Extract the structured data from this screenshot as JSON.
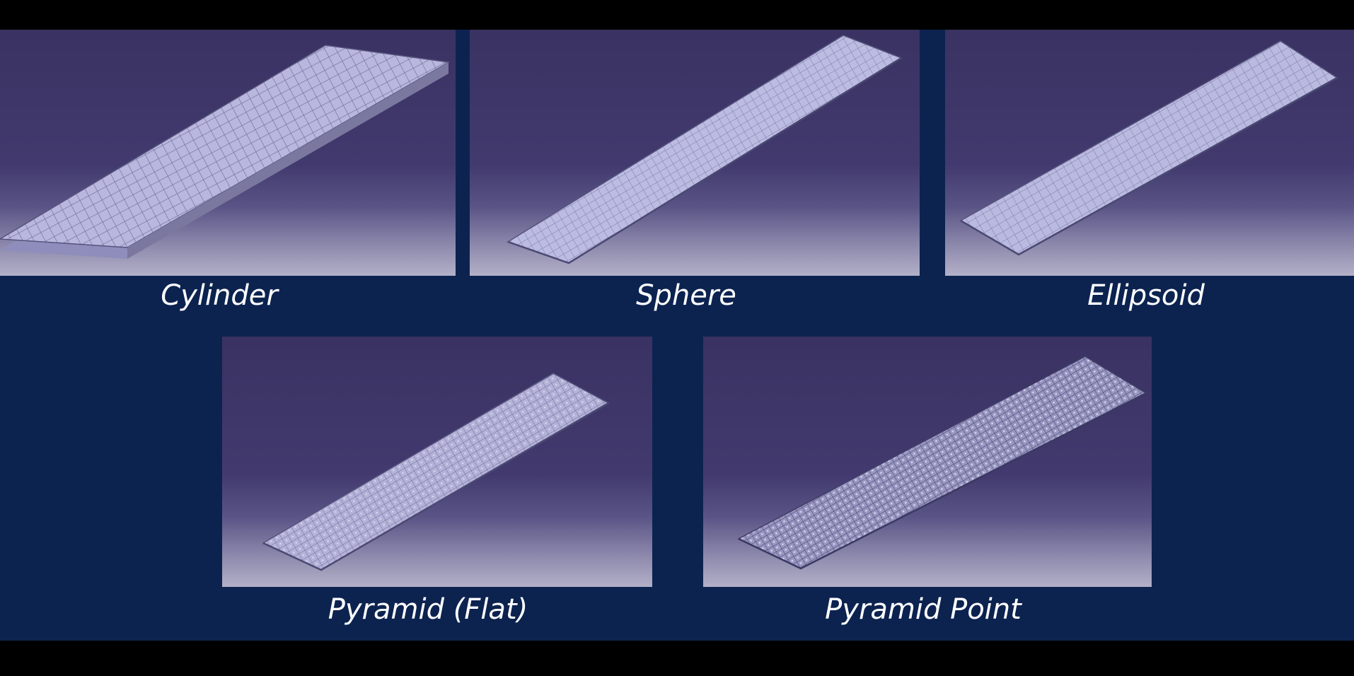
{
  "captions": {
    "cylinder": "Cylinder",
    "sphere": "Sphere",
    "ellipsoid": "Ellipsoid",
    "pyramid_flat": "Pyramid (Flat)",
    "pyramid_point": "Pyramid Point"
  },
  "colors": {
    "page_background": "#0c2350",
    "letterbox": "#000000",
    "plate_fill": "#b6b4dc",
    "grid_line": "#7c7aa6"
  }
}
